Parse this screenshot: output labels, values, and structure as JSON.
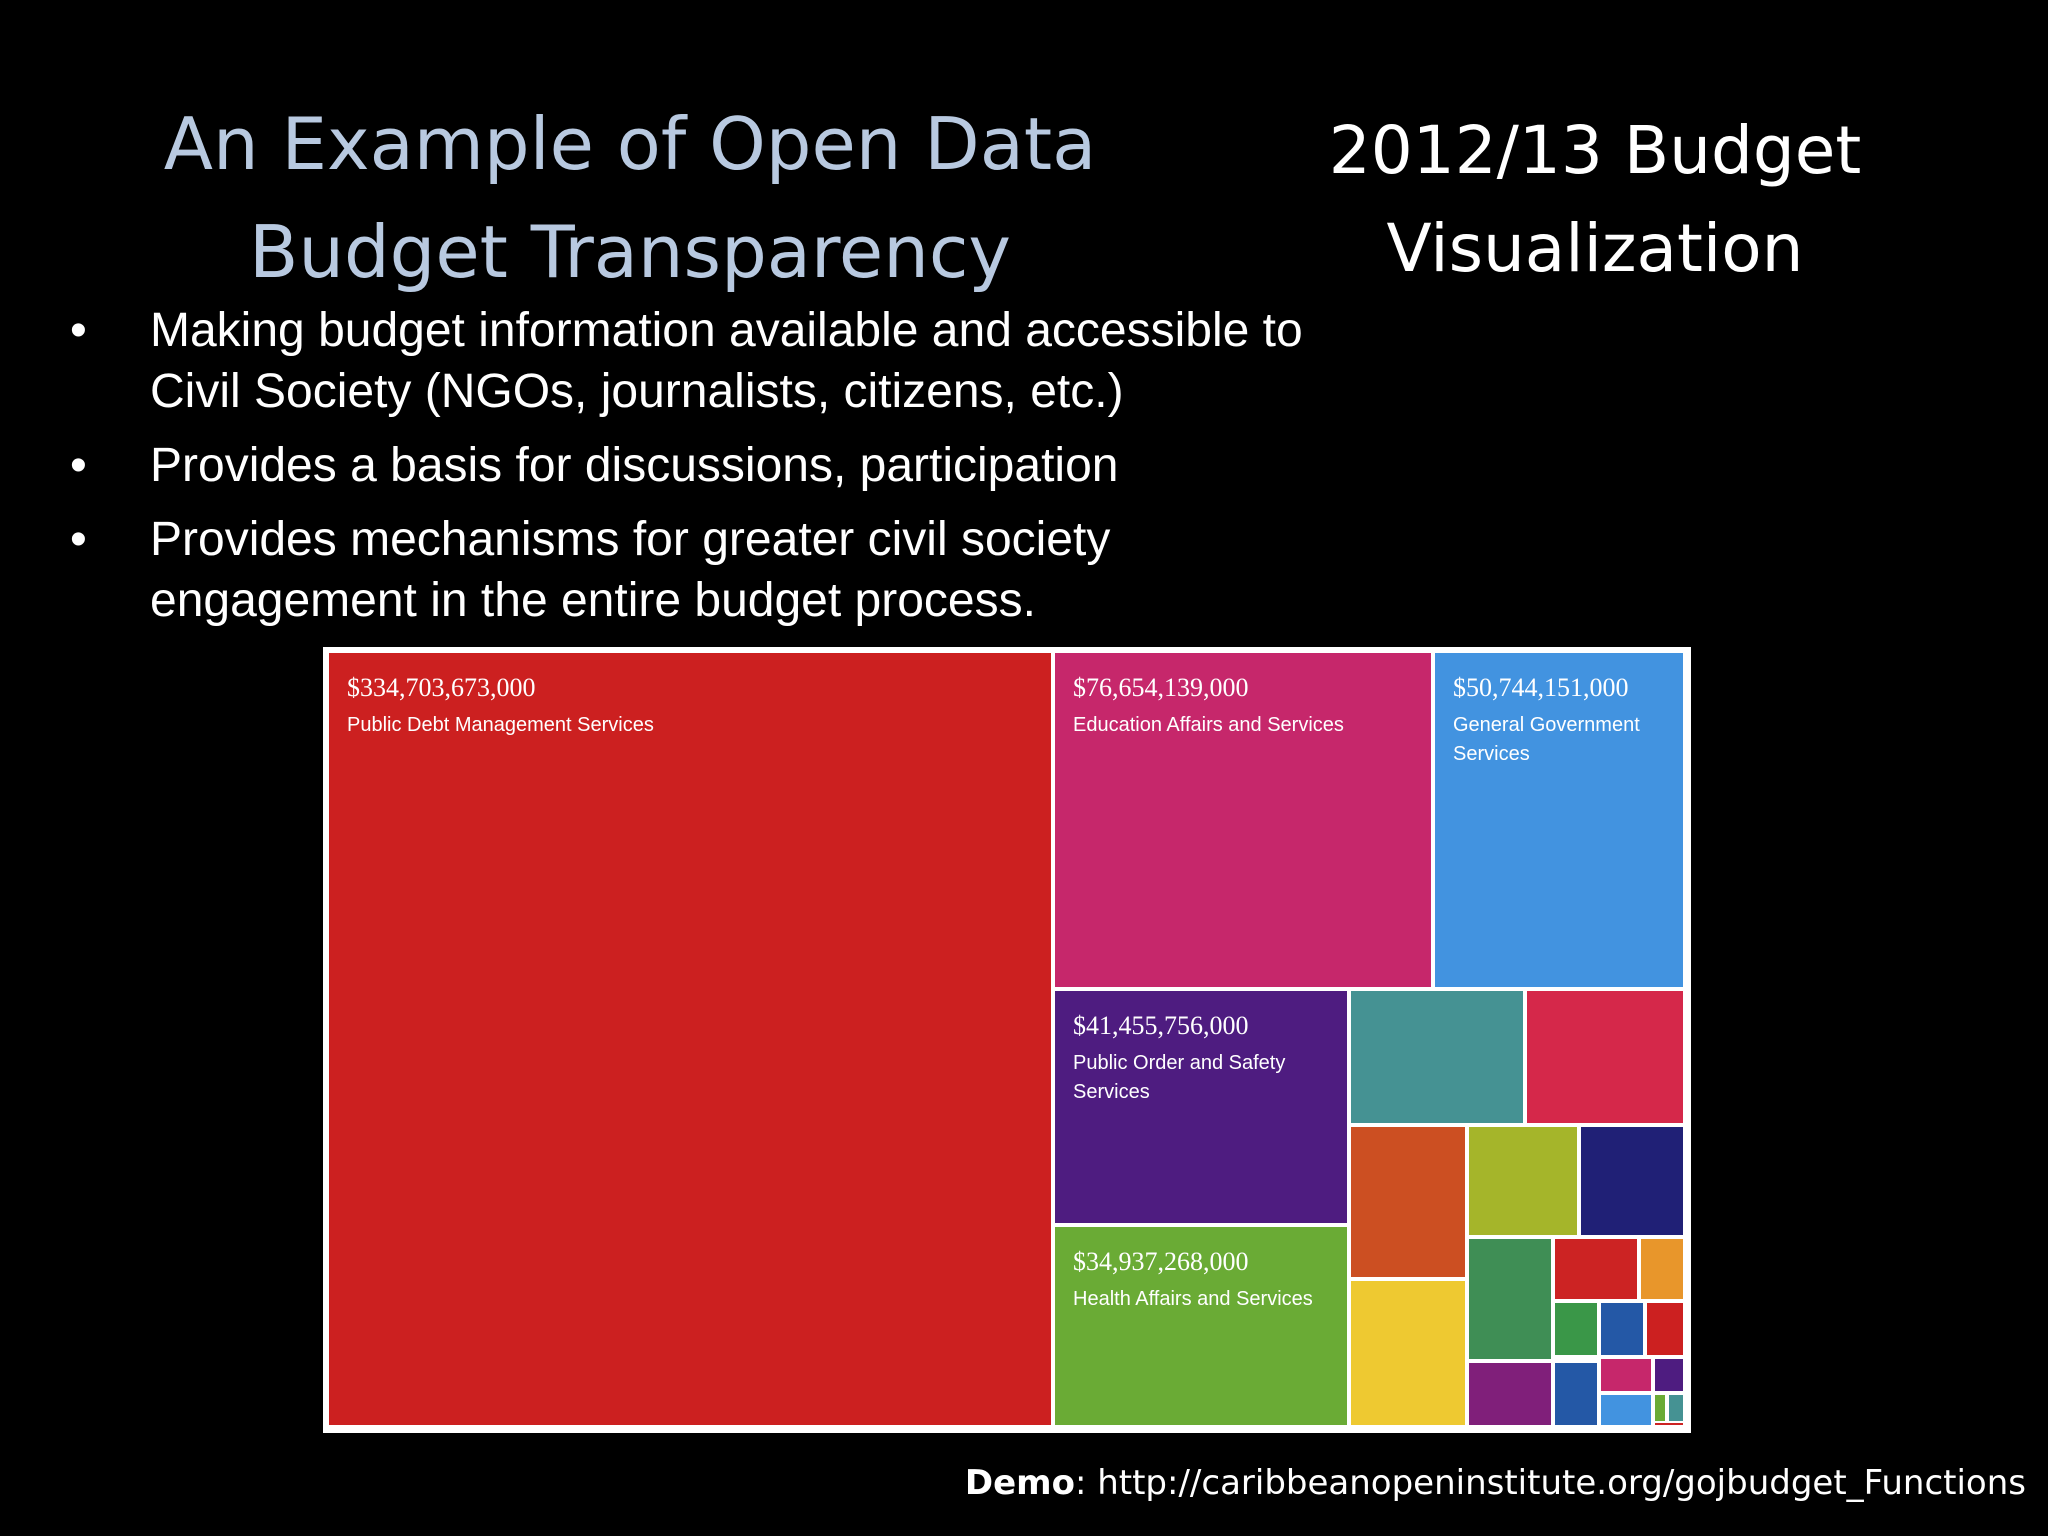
{
  "slide": {
    "title_line1": "An Example of Open Data",
    "title_line2": "Budget Transparency",
    "subtitle_line1": "2012/13 Budget",
    "subtitle_line2": "Visualization",
    "bullet_glyph": "•",
    "bullets": [
      {
        "line1": "Making budget information available and accessible to",
        "line2": "Civil Society (NGOs, journalists, citizens, etc.)"
      },
      {
        "line1": "Provides a basis for discussions, participation",
        "line2": ""
      },
      {
        "line1": "Provides mechanisms for greater civil society",
        "line2": "engagement in the entire budget process."
      }
    ],
    "footer": {
      "label": "Demo",
      "separator": ": ",
      "url": "http://caribbeanopeninstitute.org/gojbudget_Functions"
    }
  },
  "chart_data": {
    "type": "treemap",
    "title": "",
    "labeled_items": [
      {
        "value_label": "$334,703,673,000",
        "value": 334703673000,
        "name": "Public Debt Management Services",
        "color": "#cc2020"
      },
      {
        "value_label": "$76,654,139,000",
        "value": 76654139000,
        "name": "Education Affairs and Services",
        "color": "#c6276b"
      },
      {
        "value_label": "$50,744,151,000",
        "value": 50744151000,
        "name": "General Government Services",
        "color": "#4293e0"
      },
      {
        "value_label": "$41,455,756,000",
        "value": 41455756000,
        "name": "Public Order and Safety Services",
        "color": "#4e1c80"
      },
      {
        "value_label": "$34,937,268,000",
        "value": 34937268000,
        "name": "Health Affairs and Services",
        "color": "#6aab35"
      }
    ],
    "unlabeled_item_colors": [
      "#459293",
      "#d5284a",
      "#cc4f22",
      "#a5b52a",
      "#202076",
      "#eec931",
      "#3f8e55",
      "#cc2323",
      "#e8962b",
      "#3a9748",
      "#2458a6",
      "#cc2020",
      "#801f7a",
      "#2458a6",
      "#c6276b",
      "#4e1c80",
      "#4293e0",
      "#6aab35",
      "#459293",
      "#cc2323"
    ]
  }
}
